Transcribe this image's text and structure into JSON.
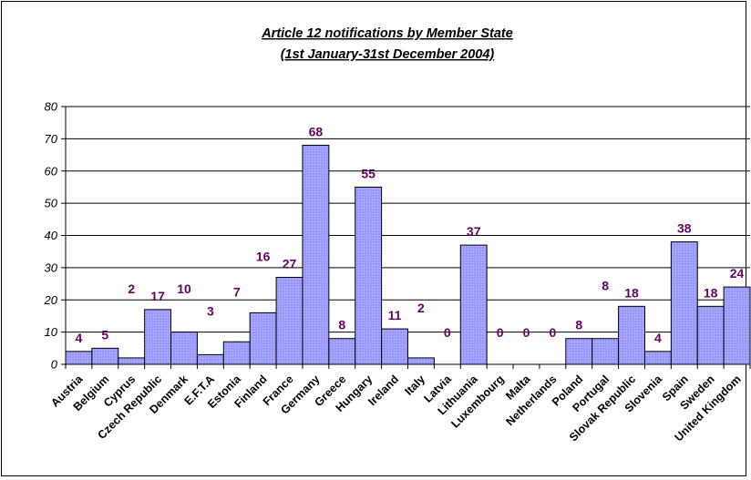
{
  "chart_data": {
    "type": "bar",
    "title": "Article 12 notifications by Member State",
    "subtitle": "(1st January-31st December 2004)",
    "xlabel": "",
    "ylabel": "",
    "ylim": [
      0,
      80
    ],
    "yticks": [
      "0",
      "10",
      "20",
      "30",
      "40",
      "50",
      "60",
      "70",
      "80"
    ],
    "grid": true,
    "legend": "none",
    "bar_color": "#9999ff",
    "label_color": "#660066",
    "categories": [
      "Austria",
      "Belgium",
      "Cyprus",
      "Czech Republic",
      "Denmark",
      "E.F.T.A",
      "Estonia",
      "Finland",
      "France",
      "Germany",
      "Greece",
      "Hungary",
      "Ireland",
      "Italy",
      "Latvia",
      "Lithuania",
      "Luxembourg",
      "Malta",
      "Netherlands",
      "Poland",
      "Portugal",
      "Slovak Republic",
      "Slovenia",
      "Spain",
      "Sweden",
      "United Kingdom"
    ],
    "values": [
      4,
      5,
      2,
      17,
      10,
      3,
      7,
      16,
      27,
      68,
      8,
      55,
      11,
      2,
      0,
      37,
      0,
      0,
      0,
      8,
      8,
      18,
      4,
      38,
      18,
      24
    ],
    "data_labels": [
      "4",
      "5",
      "2",
      "17",
      "10",
      "3",
      "7",
      "16",
      "27",
      "68",
      "8",
      "55",
      "11",
      "2",
      "0",
      "37",
      "0",
      "0",
      "0",
      "8",
      "8",
      "18",
      "4",
      "38",
      "18",
      "24"
    ]
  }
}
